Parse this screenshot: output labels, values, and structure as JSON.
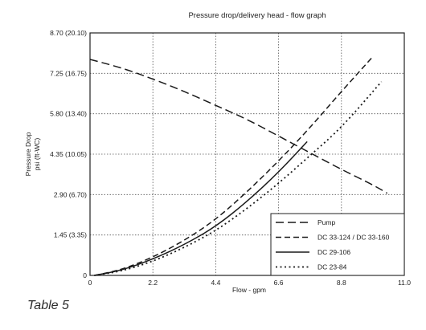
{
  "chart_data": {
    "type": "line",
    "title": "Pressure drop/delivery head - flow graph",
    "xlabel": "Flow - gpm",
    "ylabel": "Pressure Drop\npsi (ft-WC)",
    "xlim": [
      0,
      11.0
    ],
    "ylim": [
      0,
      8.7
    ],
    "x_ticks": [
      "0",
      "2.2",
      "4.4",
      "6.6",
      "8.8",
      "11.0"
    ],
    "x_tick_values": [
      0,
      2.2,
      4.4,
      6.6,
      8.8,
      11.0
    ],
    "y_ticks": [
      "0",
      "1.45 (3.35)",
      "2.90 (6.70)",
      "4.35 (10.05)",
      "5.80 (13.40)",
      "7.25 (16.75)",
      "8.70 (20.10)"
    ],
    "y_tick_values": [
      0,
      1.45,
      2.9,
      4.35,
      5.8,
      7.25,
      8.7
    ],
    "grid": true,
    "legend_position": "bottom-right",
    "series": [
      {
        "name": "Pump",
        "style": "long-dash",
        "x": [
          0,
          1.1,
          2.2,
          3.3,
          4.4,
          5.5,
          6.6,
          7.7,
          8.8,
          9.9,
          10.4
        ],
        "y": [
          7.75,
          7.45,
          7.05,
          6.6,
          6.1,
          5.6,
          5.0,
          4.4,
          3.8,
          3.25,
          2.95
        ]
      },
      {
        "name": "DC 33-124 / DC 33-160",
        "style": "dash",
        "x": [
          0.15,
          1.1,
          2.2,
          3.3,
          4.4,
          5.5,
          6.6,
          7.7,
          8.8,
          9.9
        ],
        "y": [
          0.0,
          0.2,
          0.65,
          1.25,
          2.0,
          3.0,
          4.1,
          5.3,
          6.6,
          7.85
        ]
      },
      {
        "name": "DC 29-106",
        "style": "solid",
        "x": [
          0.15,
          1.1,
          2.2,
          3.3,
          4.4,
          5.5,
          6.6,
          7.6
        ],
        "y": [
          0.0,
          0.18,
          0.58,
          1.1,
          1.75,
          2.65,
          3.7,
          4.8
        ]
      },
      {
        "name": "DC 23-84",
        "style": "dot",
        "x": [
          0.15,
          1.1,
          2.2,
          3.3,
          4.4,
          5.5,
          6.6,
          7.7,
          8.8,
          10.2
        ],
        "y": [
          0.0,
          0.15,
          0.5,
          1.0,
          1.6,
          2.4,
          3.3,
          4.3,
          5.3,
          6.95
        ]
      }
    ]
  },
  "caption": "Table 5"
}
